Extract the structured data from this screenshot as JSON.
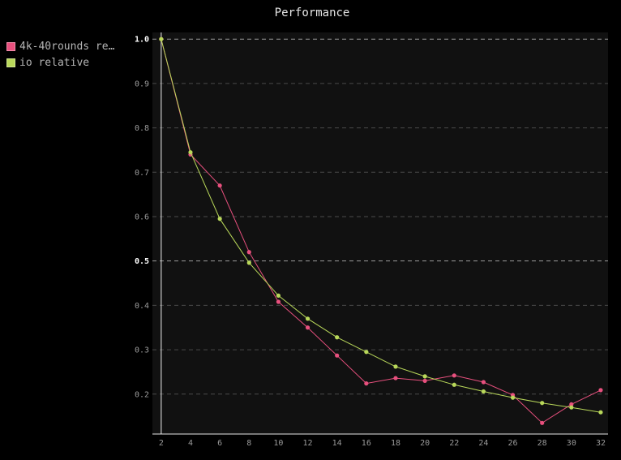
{
  "chart_data": {
    "type": "line",
    "title": "Performance",
    "xlabel": "",
    "ylabel": "",
    "x": [
      2,
      4,
      6,
      8,
      10,
      12,
      14,
      16,
      18,
      20,
      22,
      24,
      26,
      28,
      30,
      32
    ],
    "xlim": [
      1.4,
      32.5
    ],
    "ylim": [
      0.11,
      1.015
    ],
    "y_ticks": [
      "1.0",
      "0.9",
      "0.8",
      "0.7",
      "0.6",
      "0.5",
      "0.4",
      "0.3",
      "0.2"
    ],
    "y_tick_values": [
      1.0,
      0.9,
      0.8,
      0.7,
      0.6,
      0.5,
      0.4,
      0.3,
      0.2
    ],
    "major_y_ticks": [
      1.0,
      0.5
    ],
    "x_ticks": [
      "2",
      "4",
      "6",
      "8",
      "10",
      "12",
      "14",
      "16",
      "18",
      "20",
      "22",
      "24",
      "26",
      "28",
      "30",
      "32"
    ],
    "grid": "horizontal-dashed",
    "legend_position": "top-left",
    "series": [
      {
        "name": "4k-40rounds re…",
        "color": "#e8507e",
        "values": [
          1.0,
          0.74,
          0.67,
          0.52,
          0.408,
          0.35,
          0.287,
          0.224,
          0.236,
          0.23,
          0.242,
          0.227,
          0.198,
          0.135,
          0.177,
          0.209
        ]
      },
      {
        "name": "io relative",
        "color": "#b9d85a",
        "values": [
          1.0,
          0.745,
          0.595,
          0.496,
          0.422,
          0.37,
          0.328,
          0.295,
          0.262,
          0.24,
          0.221,
          0.206,
          0.192,
          0.18,
          0.17,
          0.159
        ]
      }
    ]
  }
}
